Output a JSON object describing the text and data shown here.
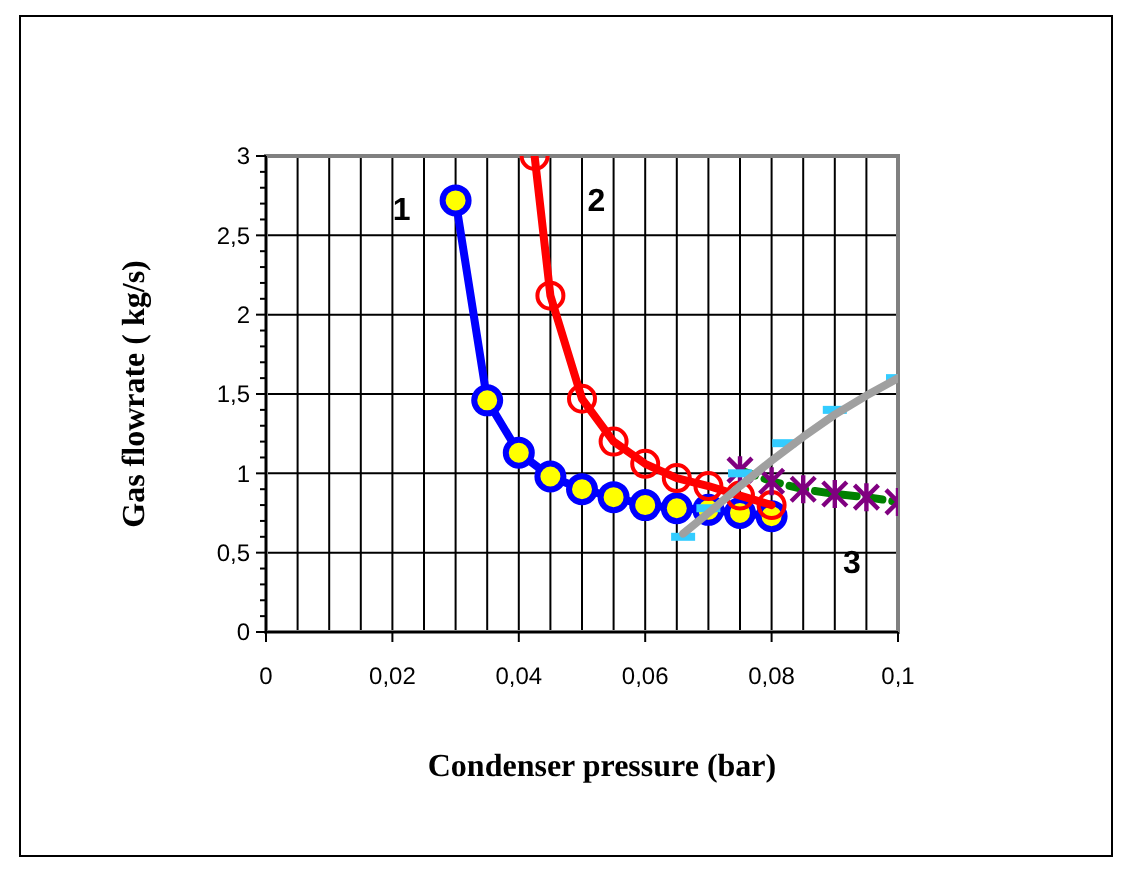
{
  "chart_data": {
    "type": "line",
    "xlabel": "Condenser  pressure (bar)",
    "ylabel": "Gas flowrate ( kg/s)",
    "xlim": [
      0,
      0.1
    ],
    "ylim": [
      0,
      3
    ],
    "xticks": [
      {
        "value": 0,
        "label": "0"
      },
      {
        "value": 0.005,
        "label": null
      },
      {
        "value": 0.01,
        "label": null
      },
      {
        "value": 0.015,
        "label": null
      },
      {
        "value": 0.02,
        "label": "0,02"
      },
      {
        "value": 0.025,
        "label": null
      },
      {
        "value": 0.03,
        "label": null
      },
      {
        "value": 0.035,
        "label": null
      },
      {
        "value": 0.04,
        "label": "0,04"
      },
      {
        "value": 0.045,
        "label": null
      },
      {
        "value": 0.05,
        "label": null
      },
      {
        "value": 0.055,
        "label": null
      },
      {
        "value": 0.06,
        "label": "0,06"
      },
      {
        "value": 0.065,
        "label": null
      },
      {
        "value": 0.07,
        "label": null
      },
      {
        "value": 0.075,
        "label": null
      },
      {
        "value": 0.08,
        "label": "0,08"
      },
      {
        "value": 0.085,
        "label": null
      },
      {
        "value": 0.09,
        "label": null
      },
      {
        "value": 0.095,
        "label": null
      },
      {
        "value": 0.1,
        "label": "0,1"
      }
    ],
    "yticks": [
      {
        "value": 0,
        "label": "0"
      },
      {
        "value": 0.5,
        "label": "0,5"
      },
      {
        "value": 1,
        "label": "1"
      },
      {
        "value": 1.5,
        "label": "1,5"
      },
      {
        "value": 2,
        "label": "2"
      },
      {
        "value": 2.5,
        "label": "2,5"
      },
      {
        "value": 3,
        "label": "3"
      }
    ],
    "grid": true,
    "line_style": "solid",
    "series": [
      {
        "color": "#0000ff",
        "marker": "circle",
        "x": [
          0.03,
          0.035,
          0.04,
          0.045,
          0.05,
          0.055,
          0.06,
          0.065,
          0.07,
          0.075,
          0.08
        ],
        "values": [
          2.72,
          1.46,
          1.13,
          0.98,
          0.9,
          0.85,
          0.8,
          0.78,
          0.77,
          0.75,
          0.73
        ]
      },
      {
        "color": "#ff0000",
        "marker": "circle",
        "x": [
          0.0425,
          0.045,
          0.05,
          0.055,
          0.06,
          0.065,
          0.07,
          0.075,
          0.08
        ],
        "values": [
          3,
          2.12,
          1.47,
          1.2,
          1.06,
          0.97,
          0.92,
          0.86,
          0.8
        ]
      },
      {
        "color": "#008000",
        "line_style": "dashed",
        "marker": "none",
        "x": [
          0.075,
          0.08,
          0.085,
          0.09,
          0.095,
          0.1
        ],
        "values": [
          1.02,
          0.95,
          0.9,
          0.87,
          0.85,
          0.82
        ]
      },
      {
        "type": "scatter",
        "color": "#800080",
        "marker": "cross",
        "x": [
          0.075,
          0.08,
          0.085,
          0.09,
          0.095,
          0.1
        ],
        "values": [
          1.02,
          0.95,
          0.9,
          0.87,
          0.85,
          0.82
        ]
      },
      {
        "type": "scatter",
        "color": "#33ccff",
        "marker": "square",
        "x": [
          0.066,
          0.07,
          0.075,
          0.082,
          0.09,
          0.1
        ],
        "values": [
          0.6,
          0.78,
          1.0,
          1.19,
          1.4,
          1.6
        ]
      },
      {
        "color": "#a0a0a0",
        "marker": "none",
        "x": [
          0.066,
          0.07,
          0.075,
          0.08,
          0.085,
          0.09,
          0.095,
          0.1
        ],
        "values": [
          0.62,
          0.75,
          0.92,
          1.08,
          1.23,
          1.37,
          1.49,
          1.6
        ]
      }
    ],
    "annotations": [
      "1",
      "2",
      "3"
    ]
  }
}
